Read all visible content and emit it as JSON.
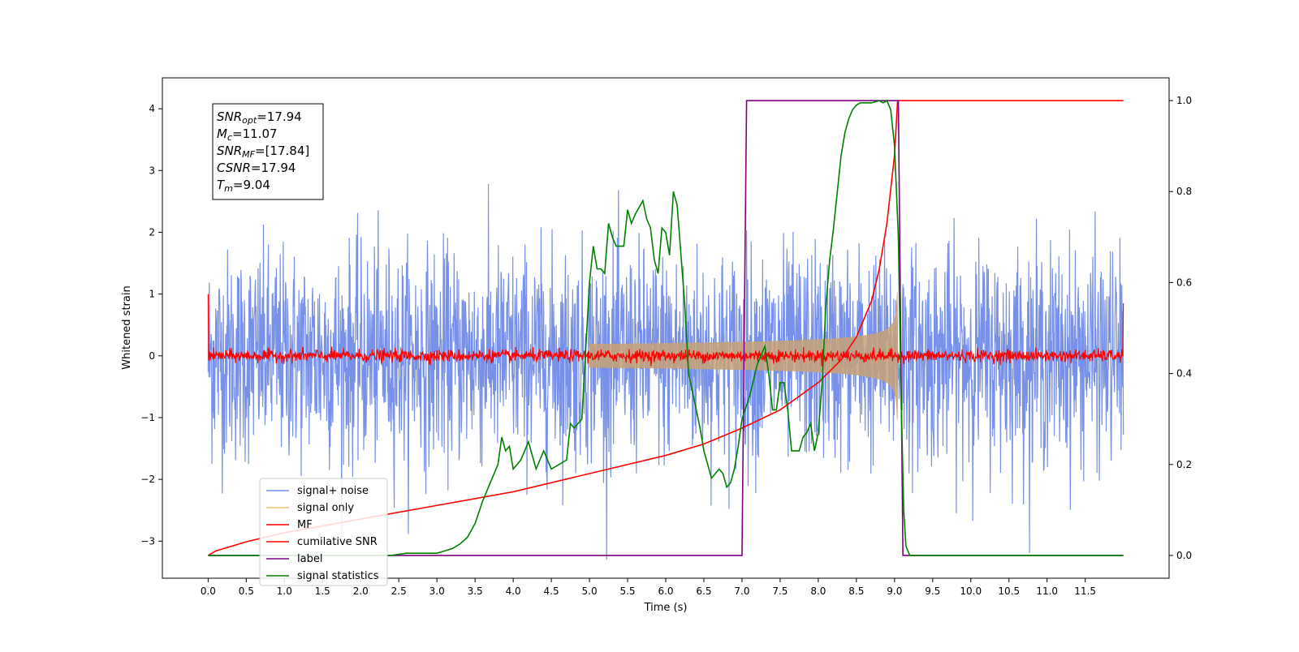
{
  "chart_data": {
    "type": "line",
    "title": "",
    "xlabel": "Time (s)",
    "ylabel": "Whitened strain",
    "xlim": [
      -0.6,
      12.6
    ],
    "ylim": [
      -3.6,
      4.5
    ],
    "y2lim": [
      -0.05,
      1.05
    ],
    "x_ticks": [
      0.0,
      0.5,
      1.0,
      1.5,
      2.0,
      2.5,
      3.0,
      3.5,
      4.0,
      4.5,
      5.0,
      5.5,
      6.0,
      6.5,
      7.0,
      7.5,
      8.0,
      8.5,
      9.0,
      9.5,
      10.0,
      10.5,
      11.0,
      11.5
    ],
    "x_tick_labels": [
      "0.0",
      "0.5",
      "1.0",
      "1.5",
      "2.0",
      "2.5",
      "3.0",
      "3.5",
      "4.0",
      "4.5",
      "5.0",
      "5.5",
      "6.0",
      "6.5",
      "7.0",
      "7.5",
      "8.0",
      "8.5",
      "9.0",
      "9.5",
      "10.0",
      "10.5",
      "11.0",
      "11.5"
    ],
    "y_ticks": [
      -3,
      -2,
      -1,
      0,
      1,
      2,
      3,
      4
    ],
    "y_tick_labels": [
      "−3",
      "−2",
      "−1",
      "0",
      "1",
      "2",
      "3",
      "4"
    ],
    "y2_ticks": [
      0.0,
      0.2,
      0.4,
      0.6,
      0.8,
      1.0
    ],
    "y2_tick_labels": [
      "0.0",
      "0.2",
      "0.4",
      "0.6",
      "0.8",
      "1.0"
    ],
    "legend_position": "lower-left",
    "legend": [
      "signal+ noise",
      "signal only",
      "MF",
      "cumilative SNR",
      "label",
      "signal statistics"
    ],
    "annotation": [
      {
        "sym": "SNR",
        "sub": "opt",
        "value": "=17.94"
      },
      {
        "sym": "M",
        "sub": "c",
        "value": "=11.07"
      },
      {
        "sym": "SNR",
        "sub": "MF",
        "value": "=[17.84]"
      },
      {
        "sym": "CSNR",
        "sub": "",
        "value": "=17.94"
      },
      {
        "sym": "T",
        "sub": "m",
        "value": "=9.04"
      }
    ],
    "series": [
      {
        "name": "signal+ noise",
        "axis": "left",
        "color": "#6f8be6",
        "x_range": [
          0,
          12
        ],
        "noise_sigma": 0.85,
        "note_style": "noisy"
      },
      {
        "name": "signal only",
        "axis": "left",
        "color": "#c8a276",
        "chirp_start": 5.0,
        "chirp_end": 9.04,
        "peak_amplitude": 1.05
      },
      {
        "name": "MF",
        "axis": "left",
        "color": "#ff0000",
        "noise_sigma": 0.05,
        "start_value": 1.0,
        "end_value": 0.85
      },
      {
        "name": "cumilative SNR",
        "axis": "right",
        "color": "#ff0000",
        "x": [
          0.0,
          0.1,
          0.5,
          1.0,
          2.0,
          3.0,
          4.0,
          5.0,
          6.0,
          6.5,
          7.0,
          7.5,
          8.0,
          8.3,
          8.5,
          8.7,
          8.8,
          8.9,
          9.0,
          9.04,
          12.0
        ],
        "y": [
          0.0,
          0.01,
          0.03,
          0.05,
          0.08,
          0.11,
          0.14,
          0.18,
          0.22,
          0.245,
          0.28,
          0.32,
          0.38,
          0.43,
          0.48,
          0.56,
          0.63,
          0.73,
          0.88,
          1.0,
          1.0
        ]
      },
      {
        "name": "label",
        "axis": "right",
        "color": "#800080",
        "x": [
          0.0,
          7.0,
          7.06,
          9.05,
          9.11,
          12.0
        ],
        "y": [
          0.0,
          0.0,
          1.0,
          1.0,
          0.0,
          0.0
        ]
      },
      {
        "name": "signal statistics",
        "axis": "right",
        "color": "#008000",
        "x": [
          0.0,
          2.4,
          2.6,
          2.8,
          3.0,
          3.1,
          3.2,
          3.3,
          3.4,
          3.5,
          3.6,
          3.7,
          3.8,
          3.85,
          3.9,
          3.95,
          4.0,
          4.1,
          4.2,
          4.3,
          4.4,
          4.5,
          4.6,
          4.7,
          4.75,
          4.8,
          4.85,
          4.9,
          4.95,
          5.0,
          5.05,
          5.1,
          5.15,
          5.2,
          5.25,
          5.3,
          5.35,
          5.4,
          5.45,
          5.5,
          5.55,
          5.6,
          5.7,
          5.75,
          5.8,
          5.85,
          5.9,
          5.95,
          6.0,
          6.05,
          6.1,
          6.15,
          6.2,
          6.25,
          6.3,
          6.35,
          6.4,
          6.45,
          6.5,
          6.55,
          6.6,
          6.65,
          6.7,
          6.75,
          6.8,
          6.85,
          6.9,
          6.95,
          7.0,
          7.1,
          7.2,
          7.3,
          7.35,
          7.4,
          7.45,
          7.5,
          7.55,
          7.6,
          7.65,
          7.7,
          7.75,
          7.8,
          7.85,
          7.9,
          7.95,
          8.0,
          8.05,
          8.1,
          8.15,
          8.2,
          8.25,
          8.3,
          8.35,
          8.4,
          8.45,
          8.5,
          8.55,
          8.6,
          8.7,
          8.8,
          8.85,
          8.9,
          8.95,
          9.0,
          9.05,
          9.08,
          9.12,
          9.15,
          9.2,
          12.0
        ],
        "y": [
          0.0,
          0.0,
          0.005,
          0.005,
          0.005,
          0.01,
          0.015,
          0.025,
          0.04,
          0.07,
          0.12,
          0.16,
          0.2,
          0.26,
          0.23,
          0.24,
          0.19,
          0.21,
          0.25,
          0.19,
          0.23,
          0.19,
          0.2,
          0.21,
          0.29,
          0.28,
          0.29,
          0.3,
          0.45,
          0.6,
          0.68,
          0.63,
          0.63,
          0.62,
          0.73,
          0.7,
          0.68,
          0.68,
          0.68,
          0.76,
          0.73,
          0.75,
          0.78,
          0.74,
          0.72,
          0.65,
          0.62,
          0.72,
          0.71,
          0.66,
          0.8,
          0.77,
          0.66,
          0.55,
          0.4,
          0.36,
          0.32,
          0.28,
          0.23,
          0.2,
          0.17,
          0.18,
          0.19,
          0.18,
          0.15,
          0.16,
          0.19,
          0.24,
          0.3,
          0.35,
          0.42,
          0.46,
          0.4,
          0.32,
          0.32,
          0.38,
          0.38,
          0.32,
          0.23,
          0.23,
          0.23,
          0.26,
          0.27,
          0.29,
          0.23,
          0.27,
          0.38,
          0.55,
          0.65,
          0.72,
          0.8,
          0.88,
          0.93,
          0.96,
          0.98,
          0.99,
          0.995,
          0.995,
          0.995,
          1.0,
          0.995,
          1.0,
          0.98,
          0.9,
          0.7,
          0.4,
          0.1,
          0.02,
          0.0,
          0.0
        ]
      }
    ]
  }
}
